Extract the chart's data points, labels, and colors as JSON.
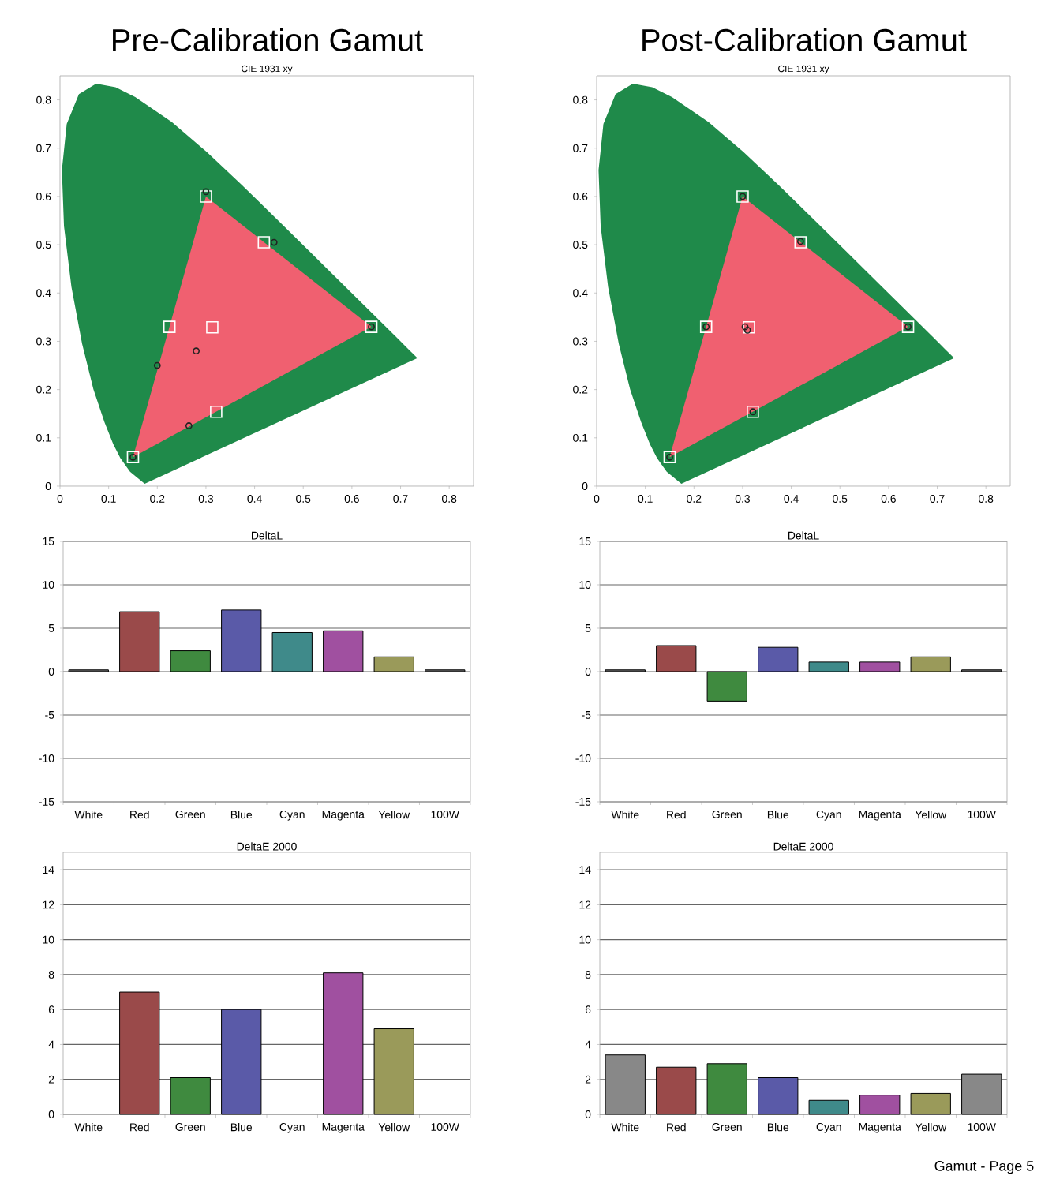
{
  "chart_data": [
    {
      "type": "scatter",
      "title": "Pre-Calibration Gamut",
      "subtitle": "CIE 1931 xy",
      "xlim": [
        0,
        0.85
      ],
      "ylim": [
        0,
        0.85
      ],
      "xticks": [
        0,
        0.1,
        0.2,
        0.3,
        0.4,
        0.5,
        0.6,
        0.7,
        0.8
      ],
      "yticks": [
        0,
        0.1,
        0.2,
        0.3,
        0.4,
        0.5,
        0.6,
        0.7,
        0.8
      ],
      "grid": false,
      "series": [
        {
          "type": "area",
          "color": "#1f8a4a",
          "x": [
            0.1741,
            0.144,
            0.1241,
            0.1096,
            0.0913,
            0.0687,
            0.0454,
            0.0235,
            0.0082,
            0.0039,
            0.0139,
            0.0389,
            0.0743,
            0.1142,
            0.1547,
            0.2296,
            0.3016,
            0.3731,
            0.4441,
            0.5125,
            0.5752,
            0.627,
            0.6915,
            0.719,
            0.7347
          ],
          "values": [
            0.005,
            0.0297,
            0.0578,
            0.0868,
            0.1327,
            0.2007,
            0.295,
            0.4127,
            0.5384,
            0.6548,
            0.7502,
            0.812,
            0.8338,
            0.8262,
            0.8059,
            0.7543,
            0.6923,
            0.6245,
            0.5547,
            0.4866,
            0.4242,
            0.3725,
            0.3083,
            0.2809,
            0.2653
          ]
        },
        {
          "type": "area",
          "color": "#f06070",
          "x": [
            0.64,
            0.3,
            0.15
          ],
          "values": [
            0.33,
            0.6,
            0.06
          ]
        },
        {
          "type": "scatter",
          "marker": "square",
          "color": "#ffffff",
          "x": [
            0.64,
            0.3,
            0.15,
            0.225,
            0.321,
            0.419,
            0.313
          ],
          "values": [
            0.33,
            0.6,
            0.06,
            0.33,
            0.154,
            0.505,
            0.329
          ]
        },
        {
          "type": "scatter",
          "marker": "circle",
          "color": "#222222",
          "x": [
            0.64,
            0.3,
            0.15,
            0.2,
            0.265,
            0.44,
            0.28
          ],
          "values": [
            0.33,
            0.61,
            0.06,
            0.25,
            0.125,
            0.505,
            0.28
          ]
        }
      ]
    },
    {
      "type": "scatter",
      "title": "Post-Calibration Gamut",
      "subtitle": "CIE 1931 xy",
      "xlim": [
        0,
        0.85
      ],
      "ylim": [
        0,
        0.85
      ],
      "xticks": [
        0,
        0.1,
        0.2,
        0.3,
        0.4,
        0.5,
        0.6,
        0.7,
        0.8
      ],
      "yticks": [
        0,
        0.1,
        0.2,
        0.3,
        0.4,
        0.5,
        0.6,
        0.7,
        0.8
      ],
      "grid": false,
      "series": [
        {
          "type": "area",
          "color": "#1f8a4a",
          "x": [
            0.1741,
            0.144,
            0.1241,
            0.1096,
            0.0913,
            0.0687,
            0.0454,
            0.0235,
            0.0082,
            0.0039,
            0.0139,
            0.0389,
            0.0743,
            0.1142,
            0.1547,
            0.2296,
            0.3016,
            0.3731,
            0.4441,
            0.5125,
            0.5752,
            0.627,
            0.6915,
            0.719,
            0.7347
          ],
          "values": [
            0.005,
            0.0297,
            0.0578,
            0.0868,
            0.1327,
            0.2007,
            0.295,
            0.4127,
            0.5384,
            0.6548,
            0.7502,
            0.812,
            0.8338,
            0.8262,
            0.8059,
            0.7543,
            0.6923,
            0.6245,
            0.5547,
            0.4866,
            0.4242,
            0.3725,
            0.3083,
            0.2809,
            0.2653
          ]
        },
        {
          "type": "area",
          "color": "#f06070",
          "x": [
            0.64,
            0.3,
            0.15
          ],
          "values": [
            0.33,
            0.6,
            0.06
          ]
        },
        {
          "type": "scatter",
          "marker": "square",
          "color": "#ffffff",
          "x": [
            0.64,
            0.3,
            0.15,
            0.225,
            0.321,
            0.419,
            0.313
          ],
          "values": [
            0.33,
            0.6,
            0.06,
            0.33,
            0.154,
            0.505,
            0.329
          ]
        },
        {
          "type": "scatter",
          "marker": "circle",
          "color": "#222222",
          "x": [
            0.64,
            0.3,
            0.15,
            0.225,
            0.321,
            0.419,
            0.31,
            0.305
          ],
          "values": [
            0.33,
            0.6,
            0.06,
            0.33,
            0.154,
            0.507,
            0.323,
            0.33
          ]
        }
      ]
    },
    {
      "type": "bar",
      "title": "DeltaL",
      "categories": [
        "White",
        "Red",
        "Green",
        "Blue",
        "Cyan",
        "Magenta",
        "Yellow",
        "100W"
      ],
      "values": [
        0.2,
        6.9,
        2.4,
        7.1,
        4.5,
        4.7,
        1.7,
        0.2
      ],
      "colors": [
        "#666666",
        "#9a4a4a",
        "#3f8a3f",
        "#5a5aa8",
        "#3f8a8a",
        "#a050a0",
        "#9a9a5a",
        "#666666"
      ],
      "ylim": [
        -15,
        15
      ],
      "yticks": [
        -15,
        -10,
        -5,
        0,
        5,
        10,
        15
      ],
      "grid": "y"
    },
    {
      "type": "bar",
      "title": "DeltaL",
      "categories": [
        "White",
        "Red",
        "Green",
        "Blue",
        "Cyan",
        "Magenta",
        "Yellow",
        "100W"
      ],
      "values": [
        0.2,
        3.0,
        -3.4,
        2.8,
        1.1,
        1.1,
        1.7,
        0.2
      ],
      "colors": [
        "#666666",
        "#9a4a4a",
        "#3f8a3f",
        "#5a5aa8",
        "#3f8a8a",
        "#a050a0",
        "#9a9a5a",
        "#666666"
      ],
      "ylim": [
        -15,
        15
      ],
      "yticks": [
        -15,
        -10,
        -5,
        0,
        5,
        10,
        15
      ],
      "grid": "y"
    },
    {
      "type": "bar",
      "title": "DeltaE 2000",
      "categories": [
        "White",
        "Red",
        "Green",
        "Blue",
        "Cyan",
        "Magenta",
        "Yellow",
        "100W"
      ],
      "values": [
        null,
        7.0,
        2.1,
        6.0,
        null,
        8.1,
        4.9,
        null
      ],
      "colors": [
        "#888888",
        "#9a4a4a",
        "#3f8a3f",
        "#5a5aa8",
        "#3f8a8a",
        "#a050a0",
        "#9a9a5a",
        "#888888"
      ],
      "ylim": [
        0,
        15
      ],
      "yticks": [
        0,
        2,
        4,
        6,
        8,
        10,
        12,
        14
      ],
      "grid": "y"
    },
    {
      "type": "bar",
      "title": "DeltaE 2000",
      "categories": [
        "White",
        "Red",
        "Green",
        "Blue",
        "Cyan",
        "Magenta",
        "Yellow",
        "100W"
      ],
      "values": [
        3.4,
        2.7,
        2.9,
        2.1,
        0.8,
        1.1,
        1.2,
        2.3
      ],
      "colors": [
        "#888888",
        "#9a4a4a",
        "#3f8a3f",
        "#5a5aa8",
        "#3f8a8a",
        "#a050a0",
        "#9a9a5a",
        "#888888"
      ],
      "ylim": [
        0,
        15
      ],
      "yticks": [
        0,
        2,
        4,
        6,
        8,
        10,
        12,
        14
      ],
      "grid": "y",
      "annotations": [
        "Gamut - Page 5"
      ]
    }
  ]
}
